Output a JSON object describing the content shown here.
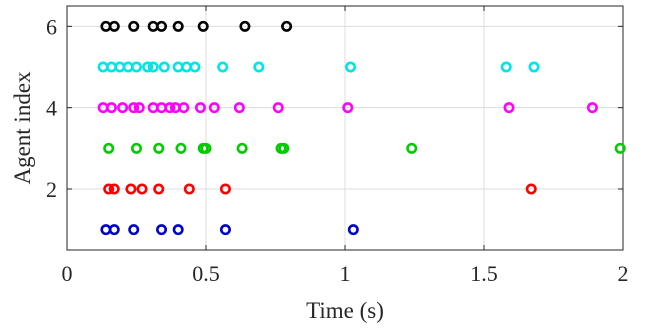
{
  "chart_data": {
    "type": "scatter",
    "title": "",
    "xlabel": "Time (s)",
    "ylabel": "Agent index",
    "xlim": [
      0,
      2
    ],
    "ylim": [
      0.5,
      6.5
    ],
    "xticks": [
      0,
      0.5,
      1,
      1.5,
      2
    ],
    "xtick_labels": [
      "0",
      "0.5",
      "1",
      "1.5",
      "2"
    ],
    "yticks": [
      2,
      4,
      6
    ],
    "ytick_labels": [
      "2",
      "4",
      "6"
    ],
    "grid": true,
    "marker": "open-circle",
    "series": [
      {
        "color": "#0000cc",
        "y": 1,
        "x": [
          0.14,
          0.17,
          0.24,
          0.34,
          0.4,
          0.57,
          1.03
        ]
      },
      {
        "color": "#ff0000",
        "y": 2,
        "x": [
          0.15,
          0.17,
          0.23,
          0.27,
          0.33,
          0.44,
          0.57,
          1.67
        ]
      },
      {
        "color": "#00cc00",
        "y": 3,
        "x": [
          0.15,
          0.25,
          0.33,
          0.41,
          0.49,
          0.5,
          0.63,
          0.77,
          0.78,
          1.24,
          1.99
        ]
      },
      {
        "color": "#ff00ff",
        "y": 4,
        "x": [
          0.13,
          0.16,
          0.2,
          0.24,
          0.26,
          0.31,
          0.34,
          0.37,
          0.39,
          0.42,
          0.48,
          0.53,
          0.62,
          0.76,
          1.01,
          1.59,
          1.89
        ]
      },
      {
        "color": "#00e5e5",
        "y": 5,
        "x": [
          0.13,
          0.16,
          0.19,
          0.22,
          0.25,
          0.29,
          0.31,
          0.35,
          0.4,
          0.43,
          0.46,
          0.56,
          0.69,
          1.02,
          1.58,
          1.68
        ]
      },
      {
        "color": "#000000",
        "y": 6,
        "x": [
          0.14,
          0.17,
          0.24,
          0.31,
          0.34,
          0.4,
          0.49,
          0.64,
          0.79
        ]
      }
    ]
  }
}
